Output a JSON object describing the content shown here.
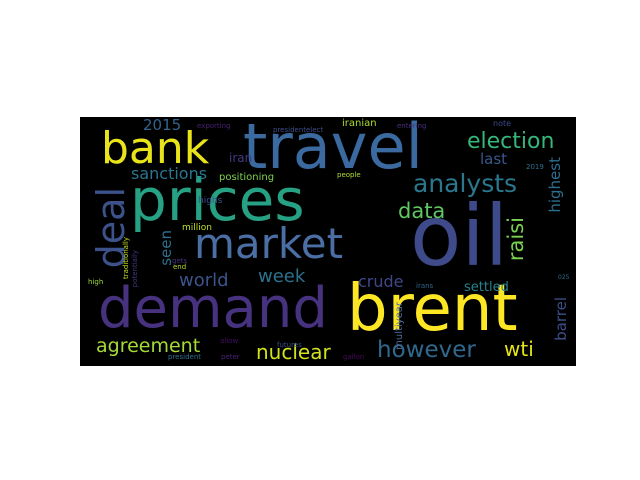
{
  "palette": {
    "background": "#000000",
    "page": "#ffffff",
    "yellow": "#fde725",
    "teal": "#22a884",
    "blue": "#3b528b",
    "purple": "#440154",
    "green": "#5ec962"
  },
  "words": [
    {
      "text": "oil",
      "color": "#3e4a89"
    },
    {
      "text": "travel",
      "color": "#3b6aa0"
    },
    {
      "text": "brent",
      "color": "#fde725"
    },
    {
      "text": "demand",
      "color": "#46327e"
    },
    {
      "text": "prices",
      "color": "#26a184"
    },
    {
      "text": "market",
      "color": "#4b6fa5"
    },
    {
      "text": "bank",
      "color": "#e8e419"
    },
    {
      "text": "deal",
      "color": "#3b528b"
    },
    {
      "text": "analysts",
      "color": "#2a788e"
    },
    {
      "text": "election",
      "color": "#35b779"
    },
    {
      "text": "however",
      "color": "#31688e"
    },
    {
      "text": "data",
      "color": "#5ec962"
    },
    {
      "text": "nuclear",
      "color": "#d2e21b"
    },
    {
      "text": "agreement",
      "color": "#a5db36"
    },
    {
      "text": "raisi",
      "color": "#7ad151"
    },
    {
      "text": "week",
      "color": "#2c728e"
    },
    {
      "text": "world",
      "color": "#3a548c"
    },
    {
      "text": "wti",
      "color": "#e5e419"
    },
    {
      "text": "crude",
      "color": "#3f4788"
    },
    {
      "text": "sanctions",
      "color": "#2b758e"
    },
    {
      "text": "2015",
      "color": "#33638d"
    },
    {
      "text": "last",
      "color": "#38598c"
    },
    {
      "text": "highest",
      "color": "#2e6e8e"
    },
    {
      "text": "barrel",
      "color": "#3c4f8a"
    },
    {
      "text": "seen",
      "color": "#2d708e"
    },
    {
      "text": "settled",
      "color": "#25848e"
    },
    {
      "text": "iran",
      "color": "#443983"
    },
    {
      "text": "million",
      "color": "#c2df23"
    },
    {
      "text": "positioning",
      "color": "#7fd34e"
    },
    {
      "text": "multiyear",
      "color": "#4f6c9e"
    },
    {
      "text": "iranian",
      "color": "#addc30"
    },
    {
      "text": "presidentelect",
      "color": "#3e4c8a"
    },
    {
      "text": "highs",
      "color": "#3a538b"
    },
    {
      "text": "traditionally",
      "color": "#c5e021"
    },
    {
      "text": "exporting",
      "color": "#482071"
    },
    {
      "text": "entering",
      "color": "#46307e"
    },
    {
      "text": "people",
      "color": "#b2dd2d"
    },
    {
      "text": "note",
      "color": "#3e4989"
    },
    {
      "text": "futures",
      "color": "#3d4e8a"
    },
    {
      "text": "potentially",
      "color": "#453581"
    },
    {
      "text": "gets",
      "color": "#46327e"
    },
    {
      "text": "end",
      "color": "#b8de29"
    },
    {
      "text": "high",
      "color": "#9bd93c"
    },
    {
      "text": "president",
      "color": "#2e6f8e"
    },
    {
      "text": "peter",
      "color": "#482173"
    },
    {
      "text": "allow",
      "color": "#440f65"
    },
    {
      "text": "irans",
      "color": "#32658e"
    },
    {
      "text": "2019",
      "color": "#2c738e"
    },
    {
      "text": "gallon",
      "color": "#460b5e"
    },
    {
      "text": "025",
      "color": "#31688e"
    }
  ]
}
